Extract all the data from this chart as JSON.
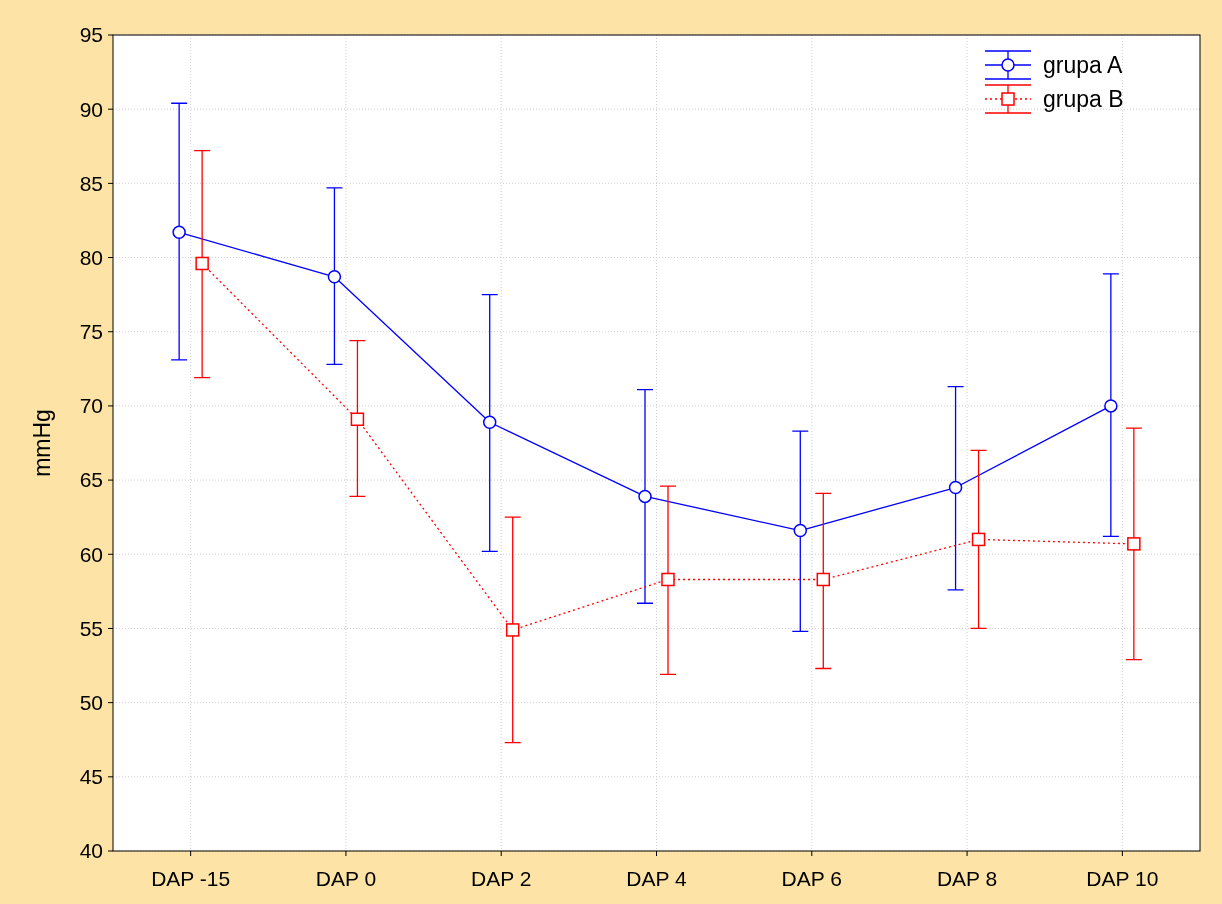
{
  "chart_data": {
    "type": "line",
    "ylabel": "mmHg",
    "categories": [
      "DAP -15",
      "DAP 0",
      "DAP 2",
      "DAP 4",
      "DAP 6",
      "DAP 8",
      "DAP 10"
    ],
    "ylim": [
      40,
      95
    ],
    "yticks": [
      40,
      45,
      50,
      55,
      60,
      65,
      70,
      75,
      80,
      85,
      90,
      95
    ],
    "grid": true,
    "legend": "top right",
    "series": [
      {
        "name": "grupa A",
        "color": "#0000ff",
        "marker": "circle",
        "line_style": "solid",
        "values": [
          81.7,
          78.7,
          68.9,
          63.9,
          61.6,
          64.5,
          70.0
        ],
        "errors": [
          [
            73.1,
            90.4
          ],
          [
            72.8,
            84.7
          ],
          [
            60.2,
            77.5
          ],
          [
            56.7,
            71.1
          ],
          [
            54.8,
            68.3
          ],
          [
            57.6,
            71.3
          ],
          [
            61.2,
            78.9
          ]
        ]
      },
      {
        "name": "grupa B",
        "color": "#ff0000",
        "marker": "square",
        "line_style": "dotted",
        "values": [
          79.6,
          69.1,
          54.9,
          58.3,
          58.3,
          61.0,
          60.7
        ],
        "errors": [
          [
            71.9,
            87.2
          ],
          [
            63.9,
            74.4
          ],
          [
            47.3,
            62.5
          ],
          [
            51.9,
            64.6
          ],
          [
            52.3,
            64.1
          ],
          [
            55.0,
            67.0
          ],
          [
            52.9,
            68.5
          ]
        ]
      }
    ]
  }
}
